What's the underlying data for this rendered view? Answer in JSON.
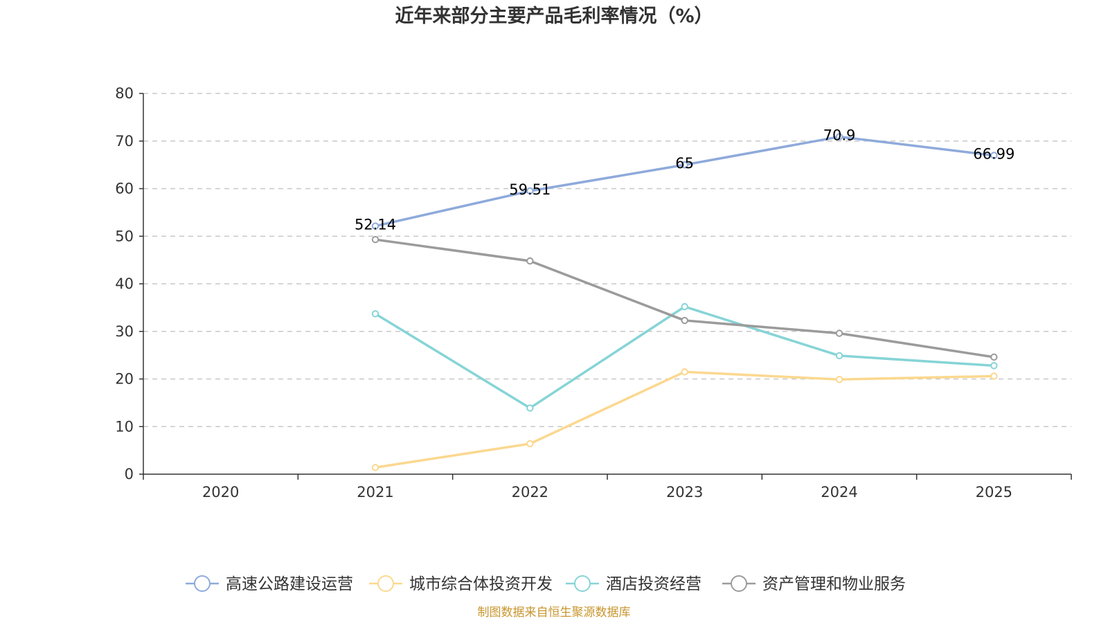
{
  "chart_data": {
    "type": "line",
    "title": "近年来部分主要产品毛利率情况（%）",
    "categories": [
      "2020",
      "2021",
      "2022",
      "2023",
      "2024",
      "2025"
    ],
    "y_ticks": [
      "0",
      "10",
      "20",
      "30",
      "40",
      "50",
      "60",
      "70",
      "80"
    ],
    "ylim": [
      0,
      80
    ],
    "grid": true,
    "legend_position": "bottom",
    "series": [
      {
        "name": "高速公路建设运营",
        "color": "#8eaadb",
        "values": [
          null,
          52.14,
          59.51,
          65,
          70.9,
          66.99
        ],
        "labels": [
          "",
          "52.14",
          "59.51",
          "65",
          "70.9",
          "66.99"
        ]
      },
      {
        "name": "城市综合体投资开发",
        "color": "#fbd88f",
        "values": [
          null,
          1.4,
          6.4,
          21.5,
          19.9,
          20.6
        ]
      },
      {
        "name": "酒店投资经营",
        "color": "#86d4d6",
        "values": [
          null,
          33.7,
          13.9,
          35.2,
          24.9,
          22.8
        ]
      },
      {
        "name": "资产管理和物业服务",
        "color": "#9b9b9b",
        "values": [
          null,
          49.3,
          44.8,
          32.3,
          29.6,
          24.6
        ]
      }
    ]
  },
  "source": {
    "text": "制图数据来自恒生聚源数据库",
    "color": "#c8962e"
  }
}
